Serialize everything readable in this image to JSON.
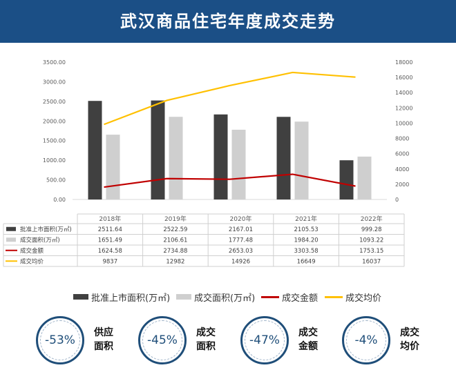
{
  "header": {
    "title": "武汉商品住宅年度成交走势"
  },
  "chart_data": {
    "type": "bar",
    "categories": [
      "2018年",
      "2019年",
      "2020年",
      "2021年",
      "2022年"
    ],
    "series": [
      {
        "name": "批准上市面积(万㎡)",
        "kind": "bar",
        "axis": "left",
        "color": "#404040",
        "values": [
          2511.64,
          2522.59,
          2167.01,
          2105.53,
          999.28
        ]
      },
      {
        "name": "成交面积(万㎡)",
        "kind": "bar",
        "axis": "left",
        "color": "#cfcfcf",
        "values": [
          1651.49,
          2106.61,
          1777.48,
          1984.2,
          1093.22
        ]
      },
      {
        "name": "成交金额",
        "kind": "line",
        "axis": "right",
        "color": "#c00000",
        "values": [
          1624.58,
          2734.88,
          2653.03,
          3303.58,
          1753.15
        ]
      },
      {
        "name": "成交均价",
        "kind": "line",
        "axis": "right",
        "color": "#ffc000",
        "values": [
          9837,
          12982,
          14926,
          16649,
          16037
        ]
      }
    ],
    "table_values": [
      [
        "2511.64",
        "2522.59",
        "2167.01",
        "2105.53",
        "999.28"
      ],
      [
        "1651.49",
        "2106.61",
        "1777.48",
        "1984.20",
        "1093.22"
      ],
      [
        "1624.58",
        "2734.88",
        "2653.03",
        "3303.58",
        "1753.15"
      ],
      [
        "9837",
        "12982",
        "14926",
        "16649",
        "16037"
      ]
    ],
    "left_axis": {
      "range": [
        0,
        3500
      ],
      "ticks": [
        "0.00",
        "500.00",
        "1000.00",
        "1500.00",
        "2000.00",
        "2500.00",
        "3000.00",
        "3500.00"
      ]
    },
    "right_axis": {
      "range": [
        0,
        18000
      ],
      "ticks": [
        "0",
        "2000",
        "4000",
        "6000",
        "8000",
        "10000",
        "12000",
        "14000",
        "16000",
        "18000"
      ]
    },
    "grid": false,
    "legend_position": "bottom"
  },
  "legend": [
    "批准上市面积(万㎡)",
    "成交面积(万㎡)",
    "成交金额",
    "成交均价"
  ],
  "stats": [
    {
      "value": "-53%",
      "label": "供应面积"
    },
    {
      "value": "-45%",
      "label": "成交面积"
    },
    {
      "value": "-47%",
      "label": "成交金额"
    },
    {
      "value": "-4%",
      "label": "成交均价"
    }
  ]
}
